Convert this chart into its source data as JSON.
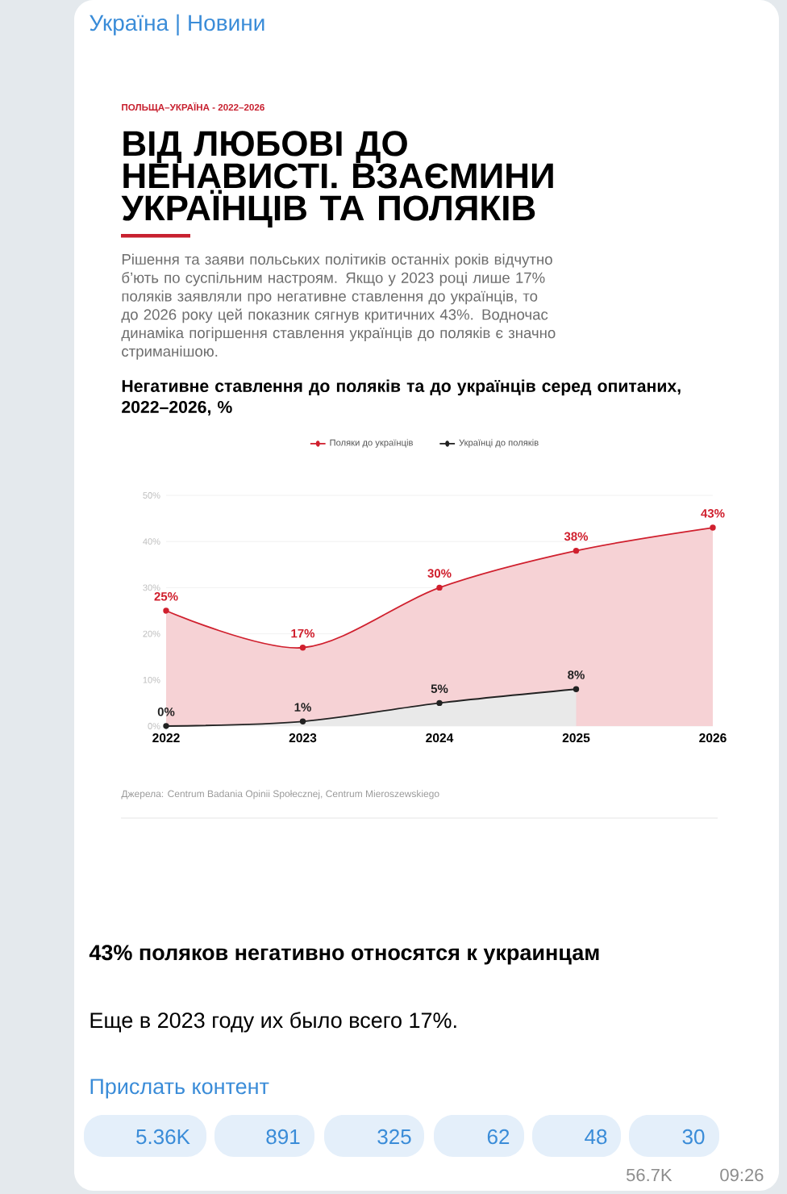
{
  "chart_data": {
    "type": "area",
    "title": "ВІД ЛЮБОВІ ДО НЕНАВИСТІ. ВЗАЄМИНИ УКРАЇНЦІВ ТА ПОЛЯКІВ",
    "subtitle": "Негативне ставлення до поляків та до українців серед опитаних, 2022–2026, %",
    "categories": [
      "2022",
      "2023",
      "2024",
      "2025",
      "2026"
    ],
    "series": [
      {
        "name": "Поляки до українців",
        "color": "#d0202e",
        "values": [
          25,
          17,
          30,
          38,
          43
        ],
        "value_labels": [
          "25%",
          "17%",
          "30%",
          "38%",
          "43%"
        ]
      },
      {
        "name": "Українці до поляків",
        "color": "#222222",
        "values": [
          0,
          1,
          5,
          8,
          null
        ],
        "value_labels": [
          "0%",
          "1%",
          "5%",
          "8%",
          null
        ]
      }
    ],
    "ylim": [
      0,
      50
    ],
    "yticks": [
      {
        "value": 0,
        "label": "0%"
      },
      {
        "value": 10,
        "label": "10%"
      },
      {
        "value": 20,
        "label": "20%"
      },
      {
        "value": 30,
        "label": "30%"
      },
      {
        "value": 40,
        "label": "40%"
      },
      {
        "value": 50,
        "label": "50%"
      }
    ],
    "grid": "y",
    "legend": "top",
    "marker": "circle",
    "annotations": [
      "Україна | Новини",
      "ПОЛЬЩА–УКРАЇНА - 2022–2026",
      "Рішення та заяви польських політиків останніх років відчутно б’ють по суспільним настроям. Якщо у 2023 році лише 17% поляків заявляли про негативне ставлення до українців, то до 2026 року цей показник сягнув критичних 43%. Водночас динаміка погіршення ставлення українців до поляків є значно стриманішою.",
      "Джерела: Centrum Badania Opinii Społecznej, Centrum Mieroszewskiego",
      "43% поляков негативно относятся к украинцам",
      "Еще в 2023 году их было всего 17%.",
      "Прислать контент",
      "5.36K",
      "891",
      "325",
      "62",
      "48",
      "30",
      "56.7K",
      "09:26"
    ]
  }
}
